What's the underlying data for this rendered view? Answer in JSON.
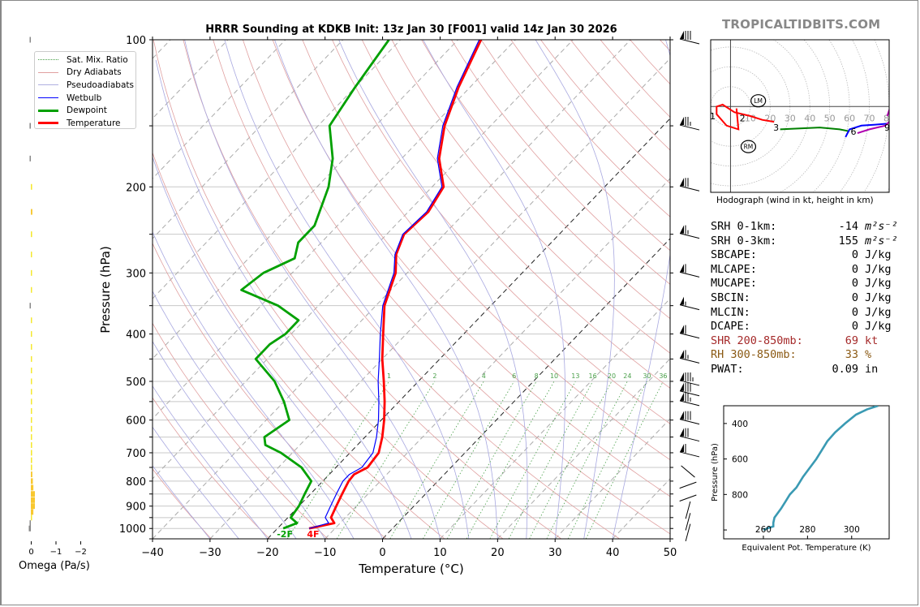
{
  "title": "HRRR Sounding at KDKB Init: 13z Jan 30 [F001] valid 14z Jan 30 2026",
  "watermark": "TROPICALTIDBITS.COM",
  "legend": [
    {
      "label": "Sat. Mix. Ratio",
      "color": "#4aa04a",
      "style": "dotted"
    },
    {
      "label": "Dry Adiabats",
      "color": "#e0a0a0",
      "style": "solid"
    },
    {
      "label": "Pseudoadiabats",
      "color": "#b0b0e0",
      "style": "solid"
    },
    {
      "label": "Wetbulb",
      "color": "#0000ff",
      "style": "solid"
    },
    {
      "label": "Dewpoint",
      "color": "#00a000",
      "style": "thick"
    },
    {
      "label": "Temperature",
      "color": "#ff0000",
      "style": "thick"
    }
  ],
  "chart_data": [
    {
      "type": "line",
      "name": "skewt",
      "title": "HRRR Sounding at KDKB Init: 13z Jan 30 [F001] valid 14z Jan 30 2026",
      "xlabel": "Temperature (°C)",
      "ylabel": "Pressure (hPa)",
      "xlim": [
        -40,
        50
      ],
      "ylim": [
        1050,
        100
      ],
      "xticks": [
        -40,
        -30,
        -20,
        -10,
        0,
        10,
        20,
        30,
        40,
        50
      ],
      "xtick_labels": [
        "−40",
        "−30",
        "−20",
        "−10",
        "0",
        "10",
        "20",
        "30",
        "40",
        "50"
      ],
      "yticks": [
        100,
        200,
        300,
        400,
        500,
        600,
        700,
        800,
        900,
        1000
      ],
      "mixing_ratio_labels": [
        "1",
        "2",
        "4",
        "6",
        "8",
        "10",
        "13",
        "16",
        "20",
        "24",
        "30",
        "36"
      ],
      "surface_labels": {
        "dewpoint": "-2F",
        "temperature": "4F"
      },
      "series": [
        {
          "name": "Temperature",
          "color": "#ff0000",
          "points": [
            [
              1000,
              -14.5
            ],
            [
              975,
              -11
            ],
            [
              950,
              -12.5
            ],
            [
              925,
              -13
            ],
            [
              900,
              -13.5
            ],
            [
              850,
              -14.5
            ],
            [
              800,
              -15.5
            ],
            [
              775,
              -15.7
            ],
            [
              750,
              -14.5
            ],
            [
              700,
              -15
            ],
            [
              650,
              -17
            ],
            [
              600,
              -19.5
            ],
            [
              550,
              -22.5
            ],
            [
              500,
              -26
            ],
            [
              450,
              -30
            ],
            [
              400,
              -34
            ],
            [
              350,
              -38.5
            ],
            [
              300,
              -42
            ],
            [
              275,
              -45
            ],
            [
              250,
              -47
            ],
            [
              225,
              -46.5
            ],
            [
              200,
              -48
            ],
            [
              175,
              -53.5
            ],
            [
              150,
              -58
            ],
            [
              125,
              -62
            ],
            [
              100,
              -66
            ]
          ]
        },
        {
          "name": "Wetbulb",
          "color": "#0000ff",
          "points": [
            [
              1000,
              -14.5
            ],
            [
              975,
              -12
            ],
            [
              950,
              -13.5
            ],
            [
              900,
              -14.5
            ],
            [
              850,
              -15.5
            ],
            [
              800,
              -16.5
            ],
            [
              775,
              -16.5
            ],
            [
              750,
              -15.5
            ],
            [
              700,
              -16
            ],
            [
              650,
              -18
            ],
            [
              600,
              -20.5
            ],
            [
              550,
              -23.5
            ],
            [
              500,
              -27
            ],
            [
              450,
              -30.5
            ],
            [
              400,
              -34.5
            ],
            [
              350,
              -38.8
            ],
            [
              300,
              -42.3
            ],
            [
              275,
              -45.2
            ],
            [
              250,
              -47.2
            ],
            [
              225,
              -46.8
            ],
            [
              200,
              -48.3
            ],
            [
              175,
              -53.8
            ],
            [
              150,
              -58.3
            ],
            [
              125,
              -62.3
            ],
            [
              100,
              -66.3
            ]
          ]
        },
        {
          "name": "Dewpoint",
          "color": "#00a000",
          "points": [
            [
              1000,
              -19
            ],
            [
              975,
              -17.5
            ],
            [
              950,
              -19.5
            ],
            [
              900,
              -20
            ],
            [
              850,
              -21
            ],
            [
              800,
              -22
            ],
            [
              750,
              -26
            ],
            [
              700,
              -32
            ],
            [
              675,
              -36
            ],
            [
              650,
              -37.5
            ],
            [
              600,
              -36
            ],
            [
              550,
              -40
            ],
            [
              500,
              -45
            ],
            [
              450,
              -52
            ],
            [
              420,
              -52
            ],
            [
              400,
              -51
            ],
            [
              375,
              -51
            ],
            [
              350,
              -57
            ],
            [
              325,
              -66
            ],
            [
              300,
              -65
            ],
            [
              280,
              -62
            ],
            [
              260,
              -64
            ],
            [
              240,
              -64
            ],
            [
              200,
              -68
            ],
            [
              175,
              -72
            ],
            [
              150,
              -78
            ],
            [
              125,
              -80
            ],
            [
              100,
              -82
            ]
          ]
        }
      ]
    },
    {
      "type": "bar",
      "name": "omega",
      "xlabel": "Omega (Pa/s)",
      "xlim": [
        0.3,
        -2.3
      ],
      "xticks": [
        0,
        -1,
        -2
      ],
      "xtick_labels": [
        "0",
        "−1",
        "−2"
      ],
      "pressure_levels": [
        100,
        150,
        175,
        200,
        225,
        250,
        275,
        300,
        325,
        350,
        375,
        400,
        425,
        450,
        475,
        500,
        525,
        550,
        575,
        600,
        625,
        650,
        675,
        700,
        725,
        750,
        775,
        800,
        825,
        850,
        875,
        900,
        925,
        950,
        975,
        1000
      ],
      "values": [
        0.02,
        0.05,
        0.04,
        -0.05,
        -0.06,
        -0.05,
        -0.04,
        -0.02,
        -0.01,
        0.01,
        -0.01,
        -0.01,
        -0.01,
        -0.02,
        -0.02,
        -0.01,
        -0.01,
        -0.01,
        -0.02,
        -0.02,
        -0.03,
        -0.04,
        -0.05,
        -0.05,
        -0.05,
        -0.05,
        -0.06,
        -0.08,
        -0.1,
        -0.16,
        -0.16,
        -0.16,
        -0.1,
        -0.03,
        0.02,
        0.08
      ]
    },
    {
      "type": "line",
      "name": "hodograph",
      "caption": "Hodograph (wind in kt, height in km)",
      "xlim": [
        -10,
        80
      ],
      "ylim": [
        -45,
        35
      ],
      "ring_labels": [
        "10",
        "20",
        "30",
        "40",
        "50",
        "60",
        "70",
        "80"
      ],
      "height_labels": [
        {
          "label": "1",
          "u": -9,
          "v": -5
        },
        {
          "label": "2",
          "u": 6,
          "v": -6
        },
        {
          "label": "3",
          "u": 23,
          "v": -11
        },
        {
          "label": "6",
          "u": 62,
          "v": -13
        },
        {
          "label": "9",
          "u": 79,
          "v": -11
        }
      ],
      "storm_motion": [
        {
          "label": "LM",
          "u": 14,
          "v": 3
        },
        {
          "label": "RM",
          "u": 9,
          "v": -21
        }
      ],
      "segments": [
        {
          "color": "#ff0000",
          "points": [
            [
              3,
              -1
            ],
            [
              4,
              -12
            ],
            [
              -2,
              -10
            ],
            [
              -7,
              -4
            ],
            [
              -7,
              0
            ],
            [
              -4,
              1
            ],
            [
              2,
              -3
            ],
            [
              10,
              -5
            ],
            [
              16,
              -7
            ],
            [
              22,
              -8
            ]
          ]
        },
        {
          "color": "#008000",
          "points": [
            [
              25,
              -12
            ],
            [
              35,
              -11.5
            ],
            [
              45,
              -11
            ],
            [
              55,
              -12
            ],
            [
              60,
              -13
            ]
          ]
        },
        {
          "color": "#0000ff",
          "points": [
            [
              58,
              -16
            ],
            [
              60,
              -12
            ],
            [
              66,
              -10
            ],
            [
              73,
              -9.5
            ],
            [
              79,
              -9
            ]
          ]
        },
        {
          "color": "#b000b0",
          "points": [
            [
              64,
              -14
            ],
            [
              70,
              -12
            ],
            [
              78,
              -10
            ],
            [
              82,
              -6
            ],
            [
              84,
              -5
            ],
            [
              80,
              -2
            ],
            [
              79,
              -5
            ]
          ]
        }
      ]
    },
    {
      "type": "line",
      "name": "theta-e",
      "xlabel": "Equivalent Pot. Temperature (K)",
      "ylabel": "Pressure (hPa)",
      "xlim": [
        242,
        317
      ],
      "ylim": [
        1050,
        300
      ],
      "xticks": [
        260,
        280,
        300
      ],
      "yticks": [
        400,
        600,
        800
      ],
      "series": [
        {
          "name": "Theta-E",
          "color": "#3a9ab3",
          "points": [
            [
              1000,
              260
            ],
            [
              990,
              262
            ],
            [
              980,
              264.5
            ],
            [
              960,
              264.5
            ],
            [
              930,
              265
            ],
            [
              880,
              268
            ],
            [
              840,
              270
            ],
            [
              800,
              272
            ],
            [
              760,
              275
            ],
            [
              740,
              276
            ],
            [
              700,
              278
            ],
            [
              650,
              281
            ],
            [
              600,
              284
            ],
            [
              550,
              286.5
            ],
            [
              500,
              289
            ],
            [
              450,
              292.5
            ],
            [
              400,
              297
            ],
            [
              350,
              302
            ],
            [
              320,
              307
            ],
            [
              300,
              312
            ]
          ]
        }
      ]
    }
  ],
  "wind_barbs": [
    {
      "pressure": 100,
      "speed_kt": 80
    },
    {
      "pressure": 150,
      "speed_kt": 75
    },
    {
      "pressure": 200,
      "speed_kt": 70
    },
    {
      "pressure": 250,
      "speed_kt": 65
    },
    {
      "pressure": 300,
      "speed_kt": 60
    },
    {
      "pressure": 350,
      "speed_kt": 55
    },
    {
      "pressure": 400,
      "speed_kt": 60
    },
    {
      "pressure": 450,
      "speed_kt": 65
    },
    {
      "pressure": 500,
      "speed_kt": 85
    },
    {
      "pressure": 525,
      "speed_kt": 80
    },
    {
      "pressure": 550,
      "speed_kt": 75
    },
    {
      "pressure": 600,
      "speed_kt": 80
    },
    {
      "pressure": 650,
      "speed_kt": 70
    },
    {
      "pressure": 700,
      "speed_kt": 60
    },
    {
      "pressure": 750,
      "speed_kt": 40
    },
    {
      "pressure": 800,
      "speed_kt": 35
    },
    {
      "pressure": 850,
      "speed_kt": 30
    },
    {
      "pressure": 900,
      "speed_kt": 30
    },
    {
      "pressure": 950,
      "speed_kt": 30
    },
    {
      "pressure": 1000,
      "speed_kt": 10
    }
  ],
  "stats": [
    {
      "label": "SRH 0-1km:",
      "value": "-14",
      "unit": "m²s⁻²",
      "color": "#000000"
    },
    {
      "label": "SRH 0-3km:",
      "value": "155",
      "unit": "m²s⁻²",
      "color": "#000000"
    },
    {
      "label": "SBCAPE:",
      "value": "0",
      "unit": "J/kg",
      "color": "#000000"
    },
    {
      "label": "MLCAPE:",
      "value": "0",
      "unit": "J/kg",
      "color": "#000000"
    },
    {
      "label": "MUCAPE:",
      "value": "0",
      "unit": "J/kg",
      "color": "#000000"
    },
    {
      "label": "SBCIN:",
      "value": "0",
      "unit": "J/kg",
      "color": "#000000"
    },
    {
      "label": "MLCIN:",
      "value": "0",
      "unit": "J/kg",
      "color": "#000000"
    },
    {
      "label": "DCAPE:",
      "value": "0",
      "unit": "J/kg",
      "color": "#000000"
    },
    {
      "label": "SHR 200-850mb:",
      "value": "69",
      "unit": "kt",
      "color": "#a52a2a"
    },
    {
      "label": "RH 300-850mb:",
      "value": "33",
      "unit": "%",
      "color": "#8b5a14"
    },
    {
      "label": "PWAT:",
      "value": "0.09",
      "unit": "in",
      "color": "#000000"
    }
  ],
  "hodograph_caption": "Hodograph (wind in kt, height in km)",
  "omega_label": "Omega (Pa/s)"
}
